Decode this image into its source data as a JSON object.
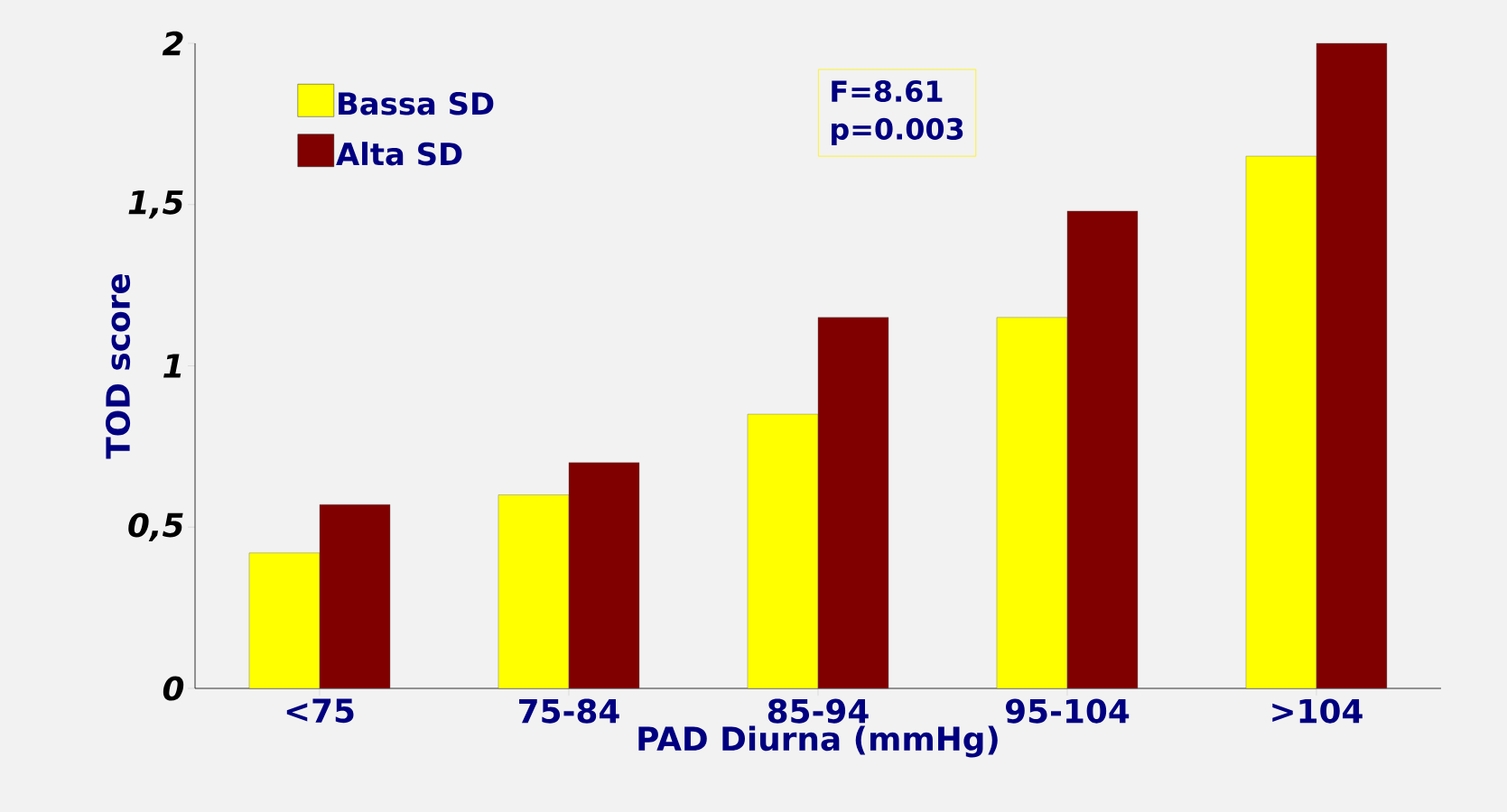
{
  "chart_data": {
    "type": "bar",
    "xlabel": "PAD Diurna (mmHg)",
    "ylabel": "TOD score",
    "categories": [
      "<75",
      "75-84",
      "85-94",
      "95-104",
      ">104"
    ],
    "series": [
      {
        "name": "Bassa SD",
        "color": "#ffff00",
        "values": [
          0.42,
          0.6,
          0.85,
          1.15,
          1.65
        ]
      },
      {
        "name": "Alta SD",
        "color": "#800000",
        "values": [
          0.57,
          0.7,
          1.15,
          1.48,
          2.0
        ]
      }
    ],
    "ylim": [
      0,
      2
    ],
    "yticks": [
      0,
      {
        "value": 0.5,
        "label": "0,5"
      },
      1,
      {
        "value": 1.5,
        "label": "1,5"
      },
      2
    ],
    "legend": "top left",
    "annotations": [
      "F=8.61",
      "p=0.003"
    ]
  }
}
